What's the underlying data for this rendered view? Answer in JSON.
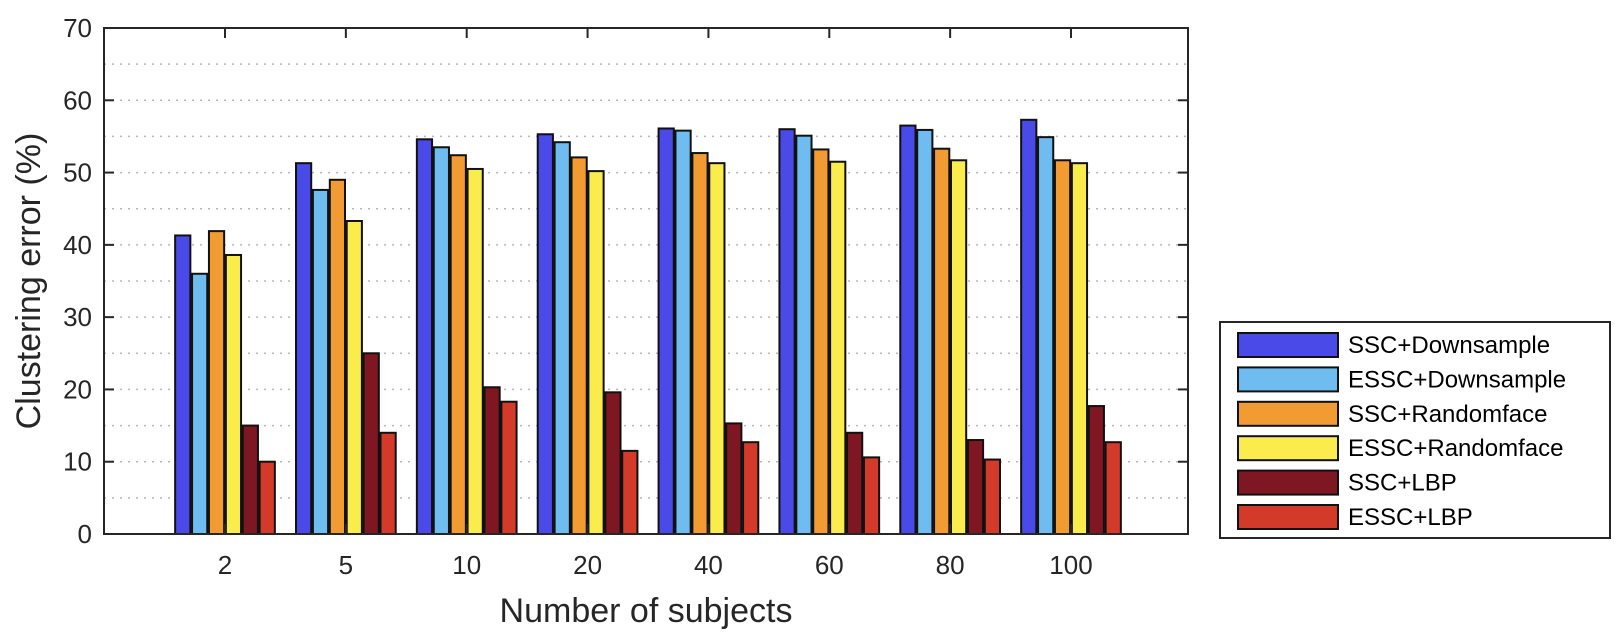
{
  "chart_data": {
    "type": "bar",
    "title": "",
    "xlabel": "Number of subjects",
    "ylabel": "Clustering error (%)",
    "ylim": [
      0,
      70
    ],
    "yticks": [
      0,
      10,
      20,
      30,
      40,
      50,
      60,
      70
    ],
    "grid": "dotted horizontal, minor every 5",
    "legend_position": "right",
    "categories": [
      "2",
      "5",
      "10",
      "20",
      "40",
      "60",
      "80",
      "100"
    ],
    "series": [
      {
        "name": "SSC+Downsample",
        "color": "#4A4AE8",
        "values": [
          41.3,
          51.3,
          54.6,
          55.3,
          56.1,
          56.0,
          56.5,
          57.3
        ]
      },
      {
        "name": "ESSC+Downsample",
        "color": "#6FBDF0",
        "values": [
          36.0,
          47.6,
          53.5,
          54.2,
          55.8,
          55.1,
          55.9,
          54.9
        ]
      },
      {
        "name": "SSC+Randomface",
        "color": "#F39B33",
        "values": [
          41.9,
          49.0,
          52.4,
          52.1,
          52.7,
          53.2,
          53.3,
          51.7
        ]
      },
      {
        "name": "ESSC+Randomface",
        "color": "#F9EC4C",
        "values": [
          38.6,
          43.3,
          50.5,
          50.2,
          51.3,
          51.5,
          51.7,
          51.3
        ]
      },
      {
        "name": "SSC+LBP",
        "color": "#7E1722",
        "values": [
          15.0,
          25.0,
          20.3,
          19.6,
          15.3,
          14.0,
          13.0,
          17.7
        ]
      },
      {
        "name": "ESSC+LBP",
        "color": "#D43A2A",
        "values": [
          10.0,
          14.0,
          18.3,
          11.5,
          12.7,
          10.6,
          10.3,
          12.7
        ]
      }
    ]
  }
}
